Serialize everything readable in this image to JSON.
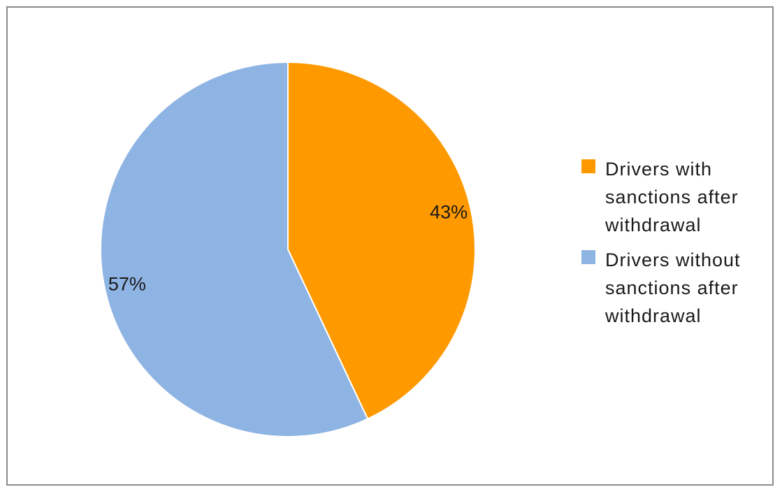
{
  "chart_data": {
    "type": "pie",
    "title": "",
    "slices": [
      {
        "label": "Drivers with\nsanctions after\nwithdrawal",
        "value": 43,
        "display": "43%",
        "color": "#FF9900"
      },
      {
        "label": "Drivers without\nsanctions after\nwithdrawal",
        "value": 57,
        "display": "57%",
        "color": "#8EB4E3"
      }
    ],
    "start_angle_deg": 0,
    "direction": "clockwise",
    "legend_position": "right"
  }
}
